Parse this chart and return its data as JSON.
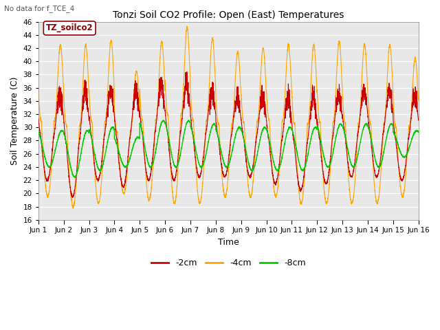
{
  "title": "Tonzi Soil CO2 Profile: Open (East) Temperatures",
  "subtitle": "No data for f_TCE_4",
  "xlabel": "Time",
  "ylabel": "Soil Temperature (C)",
  "ylim": [
    16,
    46
  ],
  "yticks": [
    16,
    18,
    20,
    22,
    24,
    26,
    28,
    30,
    32,
    34,
    36,
    38,
    40,
    42,
    44,
    46
  ],
  "xtick_labels": [
    "Jun 1",
    "Jun 2",
    "Jun 3",
    "Jun 4",
    "Jun 5",
    "Jun 6",
    "Jun 7",
    "Jun 8",
    "Jun 9",
    "Jun 10",
    "Jun 11",
    "Jun 12",
    "Jun 13",
    "Jun 14",
    "Jun 15",
    "Jun 16"
  ],
  "color_2cm": "#CC0000",
  "color_4cm": "#FFA500",
  "color_8cm": "#00CC00",
  "legend_label_2cm": "-2cm",
  "legend_label_4cm": "-4cm",
  "legend_label_8cm": "-8cm",
  "box_label": "TZ_soilco2",
  "background_color": "#E8E8E8",
  "n_days": 15,
  "samples_per_day": 288
}
